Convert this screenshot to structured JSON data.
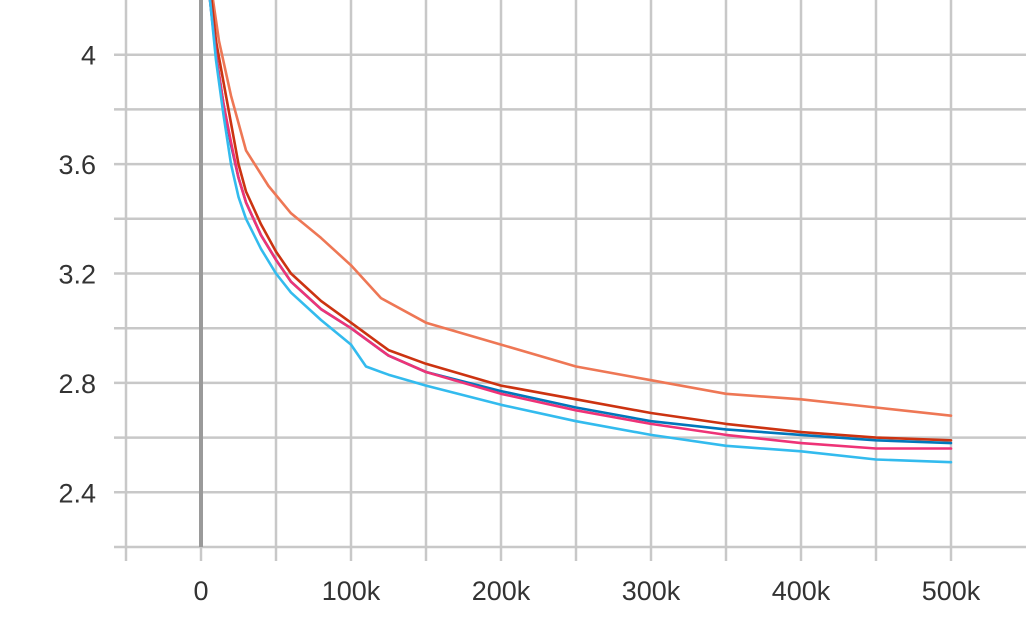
{
  "chart_data": {
    "type": "line",
    "title": "",
    "xlabel": "",
    "ylabel": "",
    "xlim": [
      -50000,
      550000
    ],
    "ylim": [
      2.2,
      4.2
    ],
    "grid": true,
    "x_major_ticks": [
      0,
      100000,
      200000,
      300000,
      400000,
      500000
    ],
    "x_tick_labels": [
      "0",
      "100k",
      "200k",
      "300k",
      "400k",
      "500k"
    ],
    "x_minor_ticks": [
      -50000,
      50000,
      150000,
      250000,
      350000,
      450000
    ],
    "y_major_ticks": [
      2.4,
      2.8,
      3.2,
      3.6,
      4.0
    ],
    "y_tick_labels": [
      "2.4",
      "2.8",
      "3.2",
      "3.6",
      "4"
    ],
    "y_minor_ticks": [
      2.2,
      2.6,
      3.0,
      3.4,
      3.8
    ],
    "series": [
      {
        "color": "#ee7755",
        "x": [
          8000,
          12000,
          20000,
          30000,
          45000,
          60000,
          80000,
          100000,
          120000,
          150000,
          200000,
          250000,
          300000,
          350000,
          400000,
          450000,
          500000
        ],
        "y": [
          4.2,
          4.05,
          3.85,
          3.65,
          3.52,
          3.42,
          3.33,
          3.23,
          3.11,
          3.02,
          2.94,
          2.86,
          2.81,
          2.76,
          2.74,
          2.71,
          2.68
        ]
      },
      {
        "color": "#cc3311",
        "x": [
          7000,
          10000,
          15000,
          20000,
          25000,
          30000,
          40000,
          50000,
          60000,
          80000,
          100000,
          125000,
          150000,
          200000,
          250000,
          300000,
          350000,
          400000,
          450000,
          500000
        ],
        "y": [
          4.2,
          4.05,
          3.9,
          3.75,
          3.6,
          3.5,
          3.38,
          3.28,
          3.2,
          3.1,
          3.02,
          2.92,
          2.87,
          2.79,
          2.74,
          2.69,
          2.65,
          2.62,
          2.6,
          2.59
        ]
      },
      {
        "color": "#0077bb",
        "x": [
          6000,
          10000,
          15000,
          20000,
          25000,
          30000,
          40000,
          50000,
          60000,
          80000,
          100000,
          125000,
          150000,
          200000,
          250000,
          300000,
          350000,
          400000,
          450000,
          500000
        ],
        "y": [
          4.2,
          4.0,
          3.82,
          3.67,
          3.55,
          3.46,
          3.34,
          3.25,
          3.17,
          3.07,
          3.0,
          2.9,
          2.84,
          2.77,
          2.71,
          2.66,
          2.63,
          2.61,
          2.59,
          2.58
        ]
      },
      {
        "color": "#ee3377",
        "x": [
          6000,
          10000,
          15000,
          20000,
          25000,
          30000,
          40000,
          50000,
          60000,
          80000,
          100000,
          125000,
          150000,
          200000,
          250000,
          300000,
          350000,
          400000,
          450000,
          500000
        ],
        "y": [
          4.2,
          4.0,
          3.82,
          3.68,
          3.55,
          3.46,
          3.34,
          3.25,
          3.17,
          3.07,
          3.0,
          2.9,
          2.84,
          2.76,
          2.7,
          2.65,
          2.61,
          2.58,
          2.56,
          2.56
        ]
      },
      {
        "color": "#33bbee",
        "x": [
          6000,
          10000,
          15000,
          20000,
          25000,
          30000,
          40000,
          50000,
          60000,
          80000,
          100000,
          110000,
          125000,
          150000,
          200000,
          250000,
          300000,
          350000,
          400000,
          450000,
          500000
        ],
        "y": [
          4.2,
          3.98,
          3.78,
          3.6,
          3.48,
          3.4,
          3.29,
          3.2,
          3.13,
          3.03,
          2.94,
          2.86,
          2.83,
          2.79,
          2.72,
          2.66,
          2.61,
          2.57,
          2.55,
          2.52,
          2.51
        ]
      }
    ]
  }
}
